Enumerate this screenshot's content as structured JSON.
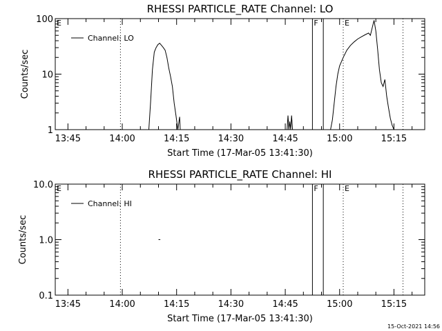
{
  "chart_data": [
    {
      "type": "line",
      "title": "RHESSI PARTICLE_RATE Channel: LO",
      "xlabel": "Start Time (17-Mar-05 13:41:30)",
      "ylabel": "Counts/sec",
      "yscale": "log",
      "ylim": [
        1,
        100
      ],
      "xlim": [
        "13:41:30",
        "15:23:30"
      ],
      "xticks": [
        "13:45",
        "14:00",
        "14:15",
        "14:30",
        "14:45",
        "15:00",
        "15:15"
      ],
      "yticks": [
        "1",
        "10",
        "100"
      ],
      "legend": {
        "position": "top-left",
        "entries": [
          "Channel: LO"
        ]
      },
      "grid": false,
      "series": [
        {
          "name": "Channel: LO",
          "segments": [
            {
              "x": [
                "14:07:20",
                "14:07:50",
                "14:08:20",
                "14:08:50",
                "14:09:20",
                "14:09:50",
                "14:10:20",
                "14:10:50",
                "14:11:20",
                "14:11:50",
                "14:12:20",
                "14:12:50",
                "14:13:20",
                "14:13:50",
                "14:14:20",
                "14:14:50",
                "14:15:20"
              ],
              "y": [
                1,
                3.2,
                12,
                25,
                30,
                34,
                36,
                33,
                30,
                27,
                20,
                13,
                9,
                6,
                3,
                1.8,
                1
              ]
            },
            {
              "x": [
                "14:15:20",
                "14:15:50",
                "14:16:00"
              ],
              "y": [
                1,
                1.7,
                1
              ]
            },
            {
              "x": [
                "14:45:30",
                "14:45:45",
                "14:46:00",
                "14:46:15",
                "14:46:30",
                "14:46:45",
                "14:47:00"
              ],
              "y": [
                1,
                1.8,
                1,
                1.4,
                1,
                1.8,
                1
              ]
            },
            {
              "x": [
                "14:57:30",
                "14:58:00",
                "14:58:30",
                "14:59:00",
                "14:59:30",
                "15:00:00",
                "15:01:00",
                "15:02:00",
                "15:03:00",
                "15:04:00",
                "15:05:00",
                "15:06:00",
                "15:07:00",
                "15:08:00",
                "15:08:30",
                "15:09:00",
                "15:09:30",
                "15:10:00",
                "15:10:30",
                "15:11:00",
                "15:11:30",
                "15:12:00",
                "15:12:30",
                "15:13:00",
                "15:13:30",
                "15:14:00",
                "15:14:30",
                "15:15:00",
                "15:15:30",
                "15:16:00"
              ],
              "y": [
                1,
                1.5,
                3,
                6,
                10,
                14,
                20,
                27,
                33,
                38,
                43,
                47,
                51,
                55,
                50,
                68,
                93,
                60,
                28,
                12,
                7,
                6,
                8,
                4,
                2.5,
                1.6,
                1.2,
                1,
                1,
                1
              ]
            }
          ]
        }
      ],
      "annotations": [
        {
          "type": "vline",
          "x": "13:41:30",
          "style": "dotted",
          "label": "E"
        },
        {
          "type": "vline",
          "x": "13:59:30",
          "style": "dotted",
          "label": ""
        },
        {
          "type": "vline",
          "x": "14:52:30",
          "style": "solid",
          "label": "F"
        },
        {
          "type": "vline",
          "x": "14:55:30",
          "style": "solid",
          "label": ""
        },
        {
          "type": "vline",
          "x": "15:01:00",
          "style": "dotted",
          "label": "E"
        },
        {
          "type": "vline",
          "x": "15:17:30",
          "style": "dotted",
          "label": ""
        }
      ]
    },
    {
      "type": "line",
      "title": "RHESSI PARTICLE_RATE Channel: HI",
      "xlabel": "Start Time (17-Mar-05 13:41:30)",
      "ylabel": "Counts/sec",
      "yscale": "log",
      "ylim": [
        0.1,
        10
      ],
      "xlim": [
        "13:41:30",
        "15:23:30"
      ],
      "xticks": [
        "13:45",
        "14:00",
        "14:15",
        "14:30",
        "14:45",
        "15:00",
        "15:15"
      ],
      "yticks": [
        "0.1",
        "1.0",
        "10.0"
      ],
      "legend": {
        "position": "top-left",
        "entries": [
          "Channel: HI"
        ]
      },
      "grid": false,
      "series": [
        {
          "name": "Channel: HI",
          "segments": [
            {
              "x": [
                "14:10:00",
                "14:10:30"
              ],
              "y": [
                1,
                1
              ]
            }
          ]
        }
      ],
      "annotations": [
        {
          "type": "vline",
          "x": "13:41:30",
          "style": "dotted",
          "label": "E"
        },
        {
          "type": "vline",
          "x": "13:59:30",
          "style": "dotted",
          "label": ""
        },
        {
          "type": "vline",
          "x": "14:52:30",
          "style": "solid",
          "label": "F"
        },
        {
          "type": "vline",
          "x": "14:55:30",
          "style": "solid",
          "label": ""
        },
        {
          "type": "vline",
          "x": "15:01:00",
          "style": "dotted",
          "label": "E"
        },
        {
          "type": "vline",
          "x": "15:17:30",
          "style": "dotted",
          "label": ""
        }
      ]
    }
  ],
  "footer": {
    "timestamp": "15-Oct-2021 14:56"
  }
}
